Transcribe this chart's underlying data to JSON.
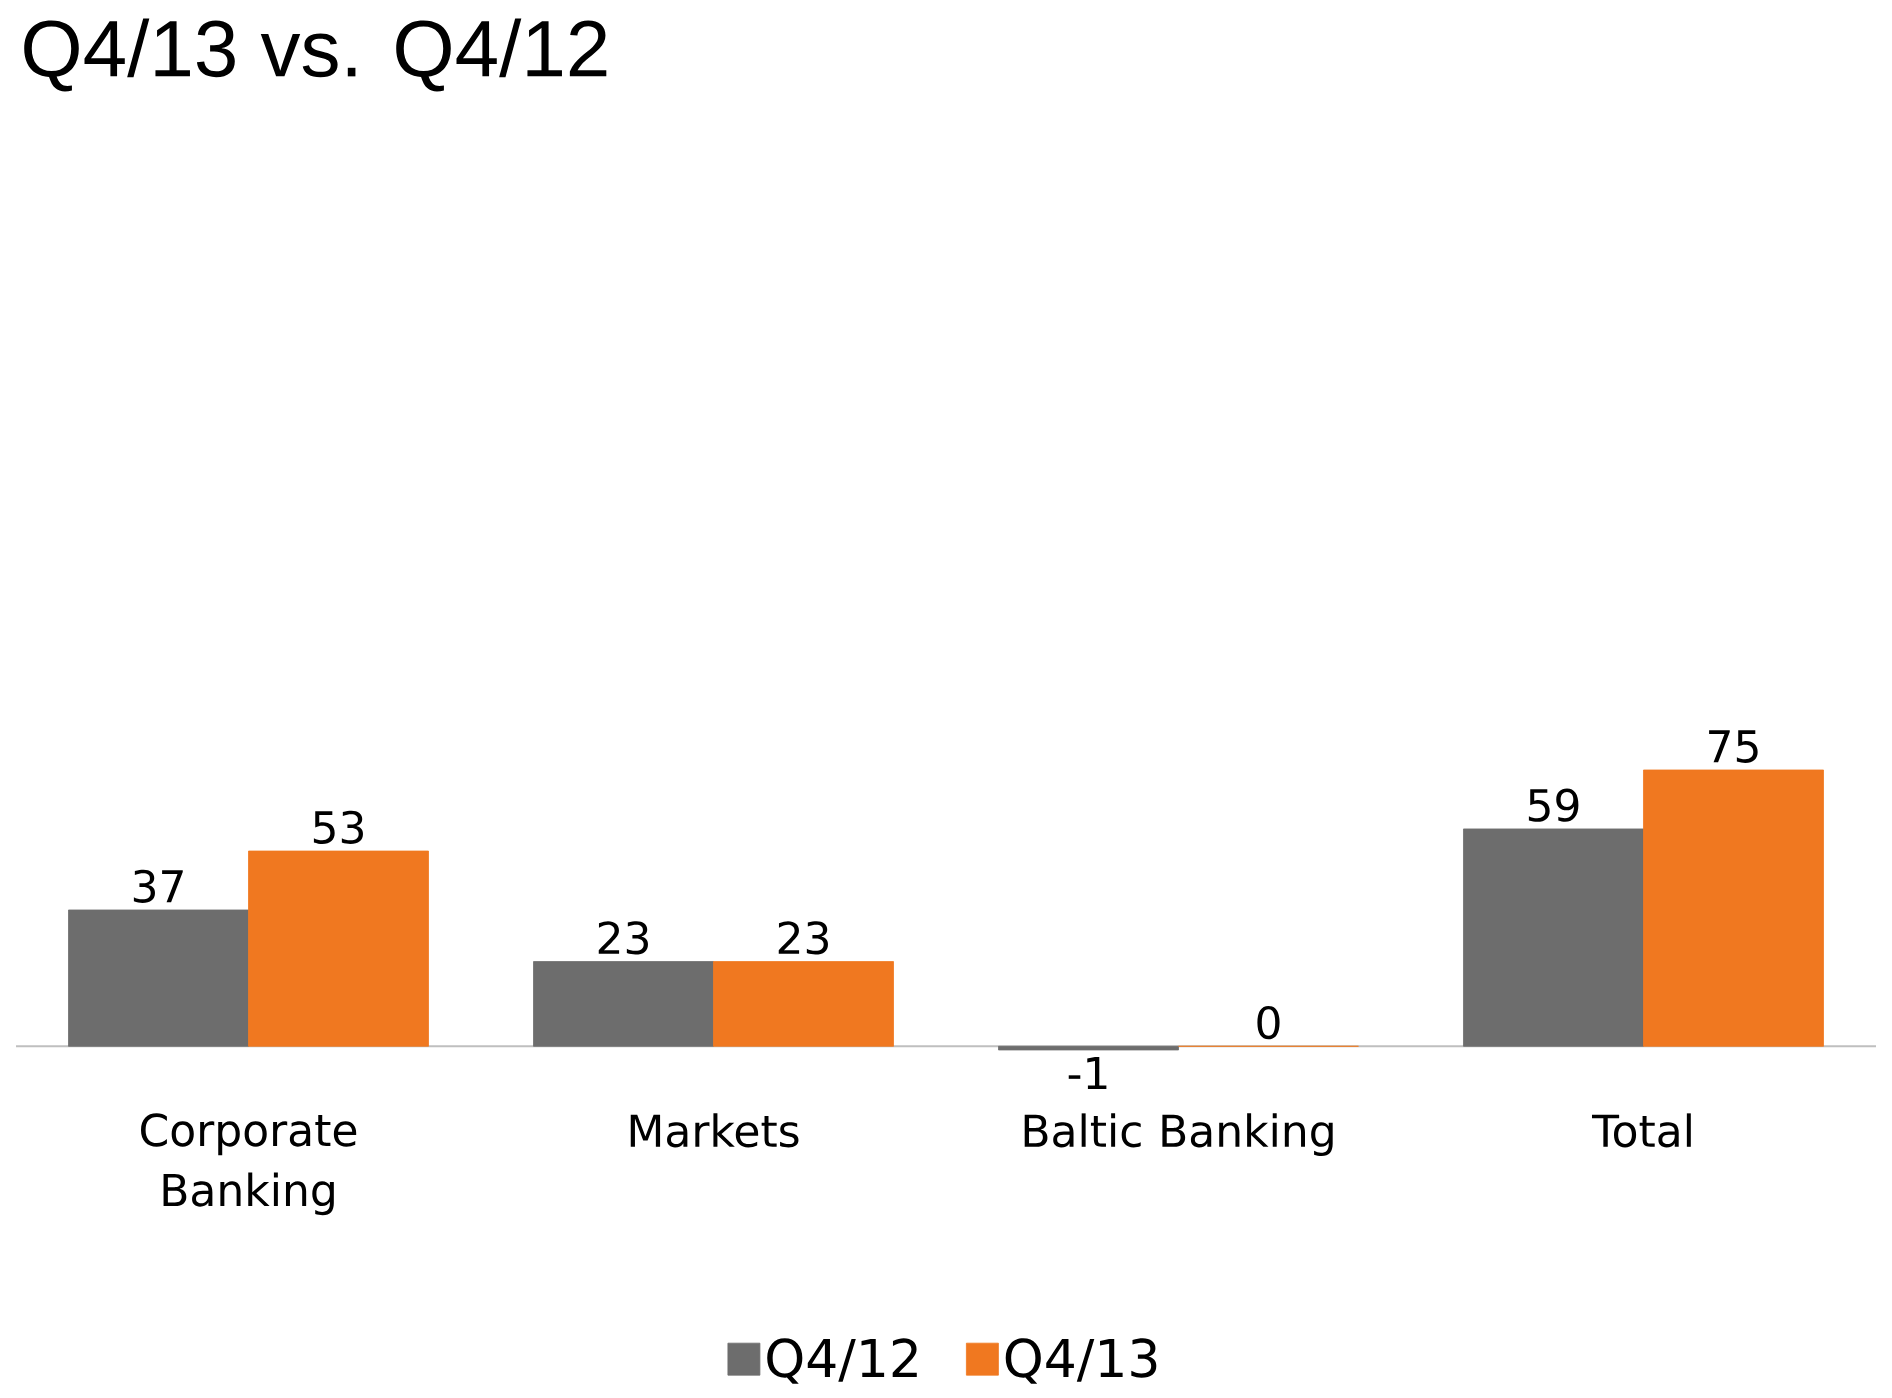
{
  "chart_data": {
    "type": "bar",
    "title": "Q4/13 vs. Q4/12",
    "categories": [
      "Corporate Banking",
      "Markets",
      "Baltic Banking",
      "Total"
    ],
    "series": [
      {
        "name": "Q4/12",
        "color": "#6d6d6d",
        "values": [
          37,
          23,
          -1,
          59
        ]
      },
      {
        "name": "Q4/13",
        "color": "#f07820",
        "values": [
          53,
          23,
          0,
          75
        ]
      }
    ],
    "data_labels": true,
    "legend": "bottom"
  }
}
